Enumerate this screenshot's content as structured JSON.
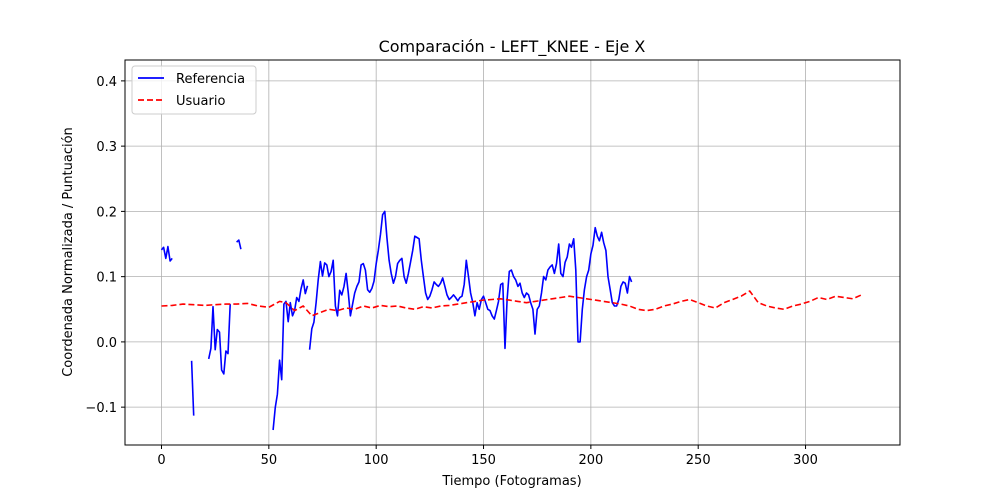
{
  "chart_data": {
    "type": "line",
    "title": "Comparación - LEFT_KNEE - Eje X",
    "xlabel": "Tiempo (Fotogramas)",
    "ylabel": "Coordenada Normalizada / Puntuación",
    "xlim": [
      -17,
      344
    ],
    "ylim": [
      -0.158,
      0.432
    ],
    "xticks": [
      0,
      50,
      100,
      150,
      200,
      250,
      300
    ],
    "yticks": [
      -0.1,
      0.0,
      0.1,
      0.2,
      0.3,
      0.4
    ],
    "ytick_labels": [
      "−0.1",
      "0.0",
      "0.1",
      "0.2",
      "0.3",
      "0.4"
    ],
    "grid": true,
    "legend_position": "top-left",
    "series": [
      {
        "name": "Referencia",
        "color": "#0000ff",
        "style": "solid",
        "segments": [
          [
            [
              0,
              0.141
            ],
            [
              1,
              0.145
            ],
            [
              2,
              0.128
            ],
            [
              3,
              0.146
            ],
            [
              4,
              0.124
            ],
            [
              5,
              0.128
            ]
          ],
          [
            [
              35,
              0.153
            ],
            [
              36,
              0.156
            ],
            [
              37,
              0.142
            ]
          ],
          [
            [
              14,
              -0.029
            ],
            [
              15,
              -0.113
            ]
          ],
          [
            [
              22,
              -0.026
            ],
            [
              23,
              -0.01
            ],
            [
              24,
              0.054
            ],
            [
              25,
              -0.012
            ],
            [
              26,
              0.019
            ],
            [
              27,
              0.015
            ],
            [
              28,
              -0.043
            ],
            [
              29,
              -0.049
            ],
            [
              30,
              -0.014
            ],
            [
              31,
              -0.018
            ],
            [
              32,
              0.058
            ]
          ],
          [
            [
              52,
              -0.135
            ],
            [
              53,
              -0.1
            ],
            [
              54,
              -0.08
            ],
            [
              55,
              -0.028
            ],
            [
              56,
              -0.058
            ],
            [
              57,
              0.058
            ],
            [
              58,
              0.062
            ],
            [
              59,
              0.031
            ],
            [
              60,
              0.06
            ],
            [
              61,
              0.04
            ],
            [
              62,
              0.048
            ],
            [
              63,
              0.068
            ],
            [
              64,
              0.062
            ],
            [
              65,
              0.081
            ],
            [
              66,
              0.095
            ],
            [
              67,
              0.074
            ],
            [
              68,
              0.086
            ]
          ],
          [
            [
              69,
              -0.012
            ],
            [
              70,
              0.02
            ],
            [
              71,
              0.03
            ],
            [
              72,
              0.06
            ],
            [
              73,
              0.095
            ],
            [
              74,
              0.123
            ],
            [
              75,
              0.101
            ],
            [
              76,
              0.121
            ],
            [
              77,
              0.118
            ],
            [
              78,
              0.1
            ],
            [
              79,
              0.108
            ],
            [
              80,
              0.125
            ],
            [
              81,
              0.055
            ],
            [
              82,
              0.04
            ],
            [
              83,
              0.079
            ],
            [
              84,
              0.072
            ],
            [
              85,
              0.085
            ],
            [
              86,
              0.105
            ],
            [
              87,
              0.075
            ],
            [
              88,
              0.04
            ],
            [
              89,
              0.058
            ],
            [
              90,
              0.075
            ],
            [
              91,
              0.085
            ],
            [
              92,
              0.092
            ],
            [
              93,
              0.118
            ],
            [
              94,
              0.12
            ],
            [
              95,
              0.11
            ],
            [
              96,
              0.08
            ],
            [
              97,
              0.076
            ],
            [
              98,
              0.082
            ],
            [
              99,
              0.093
            ],
            [
              100,
              0.12
            ],
            [
              101,
              0.14
            ],
            [
              102,
              0.165
            ],
            [
              103,
              0.195
            ],
            [
              104,
              0.2
            ],
            [
              105,
              0.16
            ],
            [
              106,
              0.125
            ],
            [
              107,
              0.105
            ],
            [
              108,
              0.09
            ],
            [
              109,
              0.1
            ],
            [
              110,
              0.12
            ],
            [
              111,
              0.125
            ],
            [
              112,
              0.128
            ],
            [
              113,
              0.1
            ],
            [
              114,
              0.09
            ],
            [
              115,
              0.105
            ],
            [
              116,
              0.122
            ],
            [
              117,
              0.14
            ],
            [
              118,
              0.162
            ],
            [
              119,
              0.16
            ],
            [
              120,
              0.158
            ],
            [
              121,
              0.125
            ],
            [
              122,
              0.1
            ],
            [
              123,
              0.075
            ],
            [
              124,
              0.065
            ],
            [
              125,
              0.07
            ],
            [
              126,
              0.08
            ],
            [
              127,
              0.092
            ],
            [
              128,
              0.088
            ],
            [
              129,
              0.085
            ],
            [
              130,
              0.09
            ],
            [
              131,
              0.098
            ],
            [
              132,
              0.085
            ],
            [
              133,
              0.072
            ],
            [
              134,
              0.065
            ],
            [
              135,
              0.068
            ],
            [
              136,
              0.072
            ],
            [
              137,
              0.068
            ],
            [
              138,
              0.063
            ],
            [
              139,
              0.068
            ],
            [
              140,
              0.07
            ],
            [
              141,
              0.088
            ],
            [
              142,
              0.125
            ],
            [
              143,
              0.1
            ],
            [
              144,
              0.075
            ],
            [
              145,
              0.06
            ],
            [
              146,
              0.04
            ],
            [
              147,
              0.06
            ],
            [
              148,
              0.05
            ],
            [
              149,
              0.065
            ],
            [
              150,
              0.07
            ],
            [
              151,
              0.06
            ],
            [
              152,
              0.05
            ],
            [
              153,
              0.048
            ],
            [
              154,
              0.04
            ],
            [
              155,
              0.035
            ],
            [
              156,
              0.048
            ],
            [
              157,
              0.062
            ],
            [
              158,
              0.088
            ],
            [
              159,
              0.09
            ],
            [
              160,
              -0.01
            ],
            [
              161,
              0.065
            ],
            [
              162,
              0.108
            ],
            [
              163,
              0.11
            ],
            [
              164,
              0.1
            ],
            [
              165,
              0.095
            ],
            [
              166,
              0.085
            ],
            [
              167,
              0.09
            ],
            [
              168,
              0.075
            ],
            [
              169,
              0.068
            ],
            [
              170,
              0.075
            ],
            [
              171,
              0.072
            ],
            [
              172,
              0.06
            ],
            [
              173,
              0.05
            ],
            [
              174,
              0.012
            ],
            [
              175,
              0.05
            ],
            [
              176,
              0.055
            ],
            [
              177,
              0.075
            ],
            [
              178,
              0.1
            ],
            [
              179,
              0.095
            ],
            [
              180,
              0.11
            ],
            [
              181,
              0.115
            ],
            [
              182,
              0.118
            ],
            [
              183,
              0.105
            ],
            [
              184,
              0.12
            ],
            [
              185,
              0.15
            ],
            [
              186,
              0.105
            ],
            [
              187,
              0.1
            ],
            [
              188,
              0.122
            ],
            [
              189,
              0.13
            ],
            [
              190,
              0.15
            ],
            [
              191,
              0.145
            ],
            [
              192,
              0.158
            ],
            [
              193,
              0.11
            ],
            [
              194,
              0.0
            ],
            [
              195,
              0.0
            ],
            [
              196,
              0.05
            ],
            [
              197,
              0.08
            ],
            [
              198,
              0.1
            ],
            [
              199,
              0.11
            ],
            [
              200,
              0.135
            ],
            [
              201,
              0.148
            ],
            [
              202,
              0.175
            ],
            [
              203,
              0.162
            ],
            [
              204,
              0.155
            ],
            [
              205,
              0.168
            ],
            [
              206,
              0.152
            ],
            [
              207,
              0.14
            ],
            [
              208,
              0.1
            ],
            [
              209,
              0.08
            ],
            [
              210,
              0.06
            ],
            [
              211,
              0.055
            ],
            [
              212,
              0.055
            ],
            [
              213,
              0.065
            ],
            [
              214,
              0.085
            ],
            [
              215,
              0.092
            ],
            [
              216,
              0.09
            ],
            [
              217,
              0.075
            ],
            [
              218,
              0.1
            ],
            [
              219,
              0.092
            ]
          ]
        ]
      },
      {
        "name": "Usuario",
        "color": "#ff0000",
        "style": "dashed",
        "points": [
          [
            0,
            0.055
          ],
          [
            5,
            0.056
          ],
          [
            10,
            0.058
          ],
          [
            15,
            0.057
          ],
          [
            20,
            0.056
          ],
          [
            25,
            0.057
          ],
          [
            30,
            0.058
          ],
          [
            35,
            0.058
          ],
          [
            40,
            0.059
          ],
          [
            45,
            0.055
          ],
          [
            50,
            0.053
          ],
          [
            55,
            0.062
          ],
          [
            58,
            0.06
          ],
          [
            62,
            0.048
          ],
          [
            66,
            0.055
          ],
          [
            70,
            0.04
          ],
          [
            74,
            0.045
          ],
          [
            78,
            0.05
          ],
          [
            82,
            0.048
          ],
          [
            86,
            0.052
          ],
          [
            90,
            0.05
          ],
          [
            94,
            0.055
          ],
          [
            98,
            0.052
          ],
          [
            102,
            0.056
          ],
          [
            106,
            0.054
          ],
          [
            110,
            0.055
          ],
          [
            114,
            0.052
          ],
          [
            118,
            0.05
          ],
          [
            122,
            0.054
          ],
          [
            126,
            0.052
          ],
          [
            130,
            0.055
          ],
          [
            134,
            0.056
          ],
          [
            138,
            0.058
          ],
          [
            142,
            0.06
          ],
          [
            146,
            0.062
          ],
          [
            150,
            0.064
          ],
          [
            154,
            0.065
          ],
          [
            158,
            0.066
          ],
          [
            162,
            0.064
          ],
          [
            166,
            0.062
          ],
          [
            170,
            0.06
          ],
          [
            174,
            0.062
          ],
          [
            178,
            0.064
          ],
          [
            182,
            0.066
          ],
          [
            186,
            0.068
          ],
          [
            190,
            0.07
          ],
          [
            194,
            0.068
          ],
          [
            198,
            0.066
          ],
          [
            202,
            0.064
          ],
          [
            206,
            0.062
          ],
          [
            210,
            0.06
          ],
          [
            214,
            0.058
          ],
          [
            218,
            0.055
          ],
          [
            222,
            0.05
          ],
          [
            226,
            0.048
          ],
          [
            230,
            0.05
          ],
          [
            234,
            0.055
          ],
          [
            238,
            0.058
          ],
          [
            242,
            0.062
          ],
          [
            246,
            0.065
          ],
          [
            250,
            0.06
          ],
          [
            254,
            0.055
          ],
          [
            258,
            0.052
          ],
          [
            262,
            0.06
          ],
          [
            266,
            0.065
          ],
          [
            270,
            0.07
          ],
          [
            274,
            0.078
          ],
          [
            278,
            0.06
          ],
          [
            282,
            0.055
          ],
          [
            286,
            0.052
          ],
          [
            290,
            0.05
          ],
          [
            294,
            0.055
          ],
          [
            298,
            0.058
          ],
          [
            302,
            0.062
          ],
          [
            306,
            0.068
          ],
          [
            310,
            0.065
          ],
          [
            314,
            0.07
          ],
          [
            318,
            0.068
          ],
          [
            322,
            0.066
          ],
          [
            326,
            0.072
          ]
        ]
      }
    ]
  }
}
